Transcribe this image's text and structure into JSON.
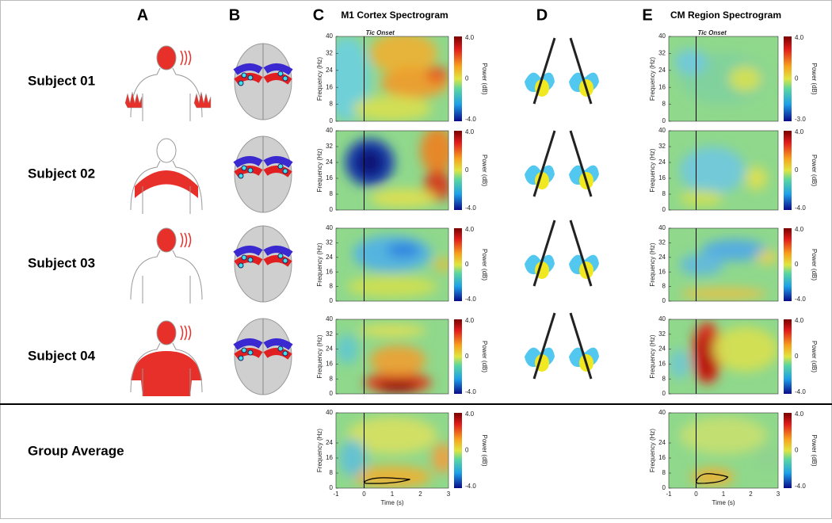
{
  "panel_labels": [
    "A",
    "B",
    "C",
    "D",
    "E"
  ],
  "m1_title": "M1 Cortex Spectrogram",
  "cm_title": "CM Region Spectrogram",
  "annotation": "Tic Onset",
  "y_axis_label": "Frequency (Hz)",
  "colorbar_label": "Power (dB)",
  "x_axis_label": "Time (s)",
  "x_ticks": [
    "-1",
    "0",
    "1",
    "2",
    "3"
  ],
  "rows": [
    {
      "label": "Subject 01",
      "y_ticks": [
        "40",
        "32",
        "24",
        "16",
        "8",
        "0"
      ],
      "m1_colorbar": [
        "4.0",
        "0",
        "-4.0"
      ],
      "cm_colorbar": [
        "4.0",
        "0",
        "-3.0"
      ]
    },
    {
      "label": "Subject 02",
      "y_ticks": [
        "40",
        "32",
        "24",
        "16",
        "8",
        "0"
      ],
      "m1_colorbar": [
        "4.0",
        "0",
        "-4.0"
      ],
      "cm_colorbar": [
        "4.0",
        "0",
        "-4.0"
      ]
    },
    {
      "label": "Subject 03",
      "y_ticks": [
        "40",
        "32",
        "24",
        "16",
        "8",
        "0"
      ],
      "m1_colorbar": [
        "4.0",
        "0",
        "-4.0"
      ],
      "cm_colorbar": [
        "4.0",
        "0",
        "-4.0"
      ]
    },
    {
      "label": "Subject 04",
      "y_ticks": [
        "40",
        "32",
        "24",
        "16",
        "8",
        "0"
      ],
      "m1_colorbar": [
        "4.0",
        "0",
        "-4.0"
      ],
      "cm_colorbar": [
        "4.0",
        "0",
        "-4.0"
      ]
    },
    {
      "label": "Group Average",
      "y_ticks": [
        "40",
        "24",
        "16",
        "8",
        "0"
      ],
      "m1_colorbar": [
        "4.0",
        "0",
        "-4.0"
      ],
      "cm_colorbar": [
        "4.0",
        "0",
        "-4.0"
      ]
    }
  ]
}
